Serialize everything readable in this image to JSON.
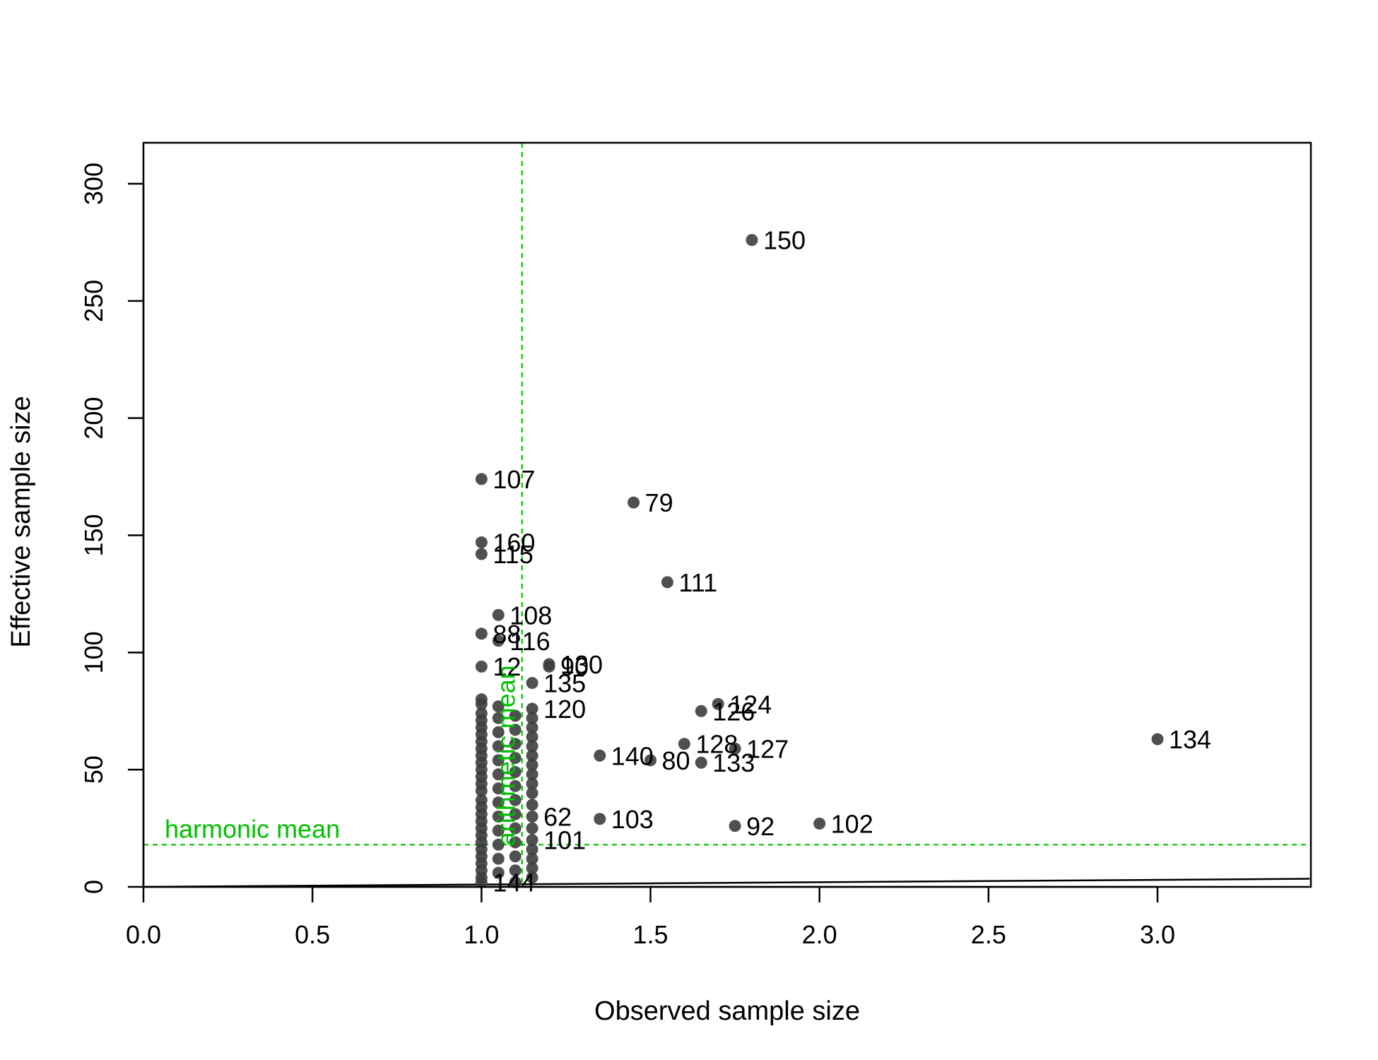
{
  "chart_data": {
    "type": "scatter",
    "title": "",
    "xlabel": "Observed sample size",
    "ylabel": "Effective sample size",
    "xlim": [
      0,
      3.45
    ],
    "ylim": [
      0,
      318
    ],
    "x_ticks": [
      "0.0",
      "0.5",
      "1.0",
      "1.5",
      "2.0",
      "2.5",
      "3.0"
    ],
    "x_tick_values": [
      0,
      0.5,
      1.0,
      1.5,
      2.0,
      2.5,
      3.0
    ],
    "y_ticks": [
      "0",
      "50",
      "100",
      "150",
      "200",
      "250",
      "300"
    ],
    "y_tick_values": [
      0,
      50,
      100,
      150,
      200,
      250,
      300
    ],
    "grid": false,
    "point_color": "#3d3d3d",
    "reference_color": "#00c000",
    "reference_lines": [
      {
        "label": "harmonic mean",
        "orientation": "horizontal",
        "value": 18
      },
      {
        "label": "arithmetic mean",
        "orientation": "vertical",
        "value": 1.12
      }
    ],
    "identity_line": {
      "from": [
        0,
        0
      ],
      "to": [
        3.45,
        3.45
      ]
    },
    "labeled_points": [
      {
        "label": "150",
        "x": 1.8,
        "y": 276
      },
      {
        "label": "107",
        "x": 1.0,
        "y": 174
      },
      {
        "label": "79",
        "x": 1.45,
        "y": 164
      },
      {
        "label": "160",
        "x": 1.0,
        "y": 147
      },
      {
        "label": "115",
        "x": 1.0,
        "y": 142
      },
      {
        "label": "111",
        "x": 1.55,
        "y": 130
      },
      {
        "label": "108",
        "x": 1.05,
        "y": 116
      },
      {
        "label": "88",
        "x": 1.0,
        "y": 108
      },
      {
        "label": "116",
        "x": 1.05,
        "y": 105
      },
      {
        "label": "12",
        "x": 1.0,
        "y": 94
      },
      {
        "label": "130",
        "x": 1.2,
        "y": 95
      },
      {
        "label": "90",
        "x": 1.2,
        "y": 94
      },
      {
        "label": "135",
        "x": 1.15,
        "y": 87
      },
      {
        "label": "120",
        "x": 1.15,
        "y": 76
      },
      {
        "label": "124",
        "x": 1.7,
        "y": 78
      },
      {
        "label": "126",
        "x": 1.65,
        "y": 75
      },
      {
        "label": "128",
        "x": 1.6,
        "y": 61
      },
      {
        "label": "127",
        "x": 1.75,
        "y": 59
      },
      {
        "label": "140",
        "x": 1.35,
        "y": 56
      },
      {
        "label": "80",
        "x": 1.5,
        "y": 54
      },
      {
        "label": "133",
        "x": 1.65,
        "y": 53
      },
      {
        "label": "134",
        "x": 3.0,
        "y": 63
      },
      {
        "label": "62",
        "x": 1.15,
        "y": 30
      },
      {
        "label": "103",
        "x": 1.35,
        "y": 29
      },
      {
        "label": "92",
        "x": 1.75,
        "y": 26
      },
      {
        "label": "102",
        "x": 2.0,
        "y": 27
      },
      {
        "label": "101",
        "x": 1.15,
        "y": 20
      },
      {
        "label": "144",
        "x": 1.0,
        "y": 2
      }
    ],
    "cluster_points": [
      {
        "x": 1.0,
        "y": 80
      },
      {
        "x": 1.0,
        "y": 78
      },
      {
        "x": 1.0,
        "y": 74
      },
      {
        "x": 1.0,
        "y": 71
      },
      {
        "x": 1.0,
        "y": 68
      },
      {
        "x": 1.0,
        "y": 65
      },
      {
        "x": 1.0,
        "y": 62
      },
      {
        "x": 1.0,
        "y": 59
      },
      {
        "x": 1.0,
        "y": 56
      },
      {
        "x": 1.0,
        "y": 53
      },
      {
        "x": 1.0,
        "y": 50
      },
      {
        "x": 1.0,
        "y": 47
      },
      {
        "x": 1.0,
        "y": 44
      },
      {
        "x": 1.0,
        "y": 41
      },
      {
        "x": 1.0,
        "y": 37
      },
      {
        "x": 1.0,
        "y": 34
      },
      {
        "x": 1.0,
        "y": 31
      },
      {
        "x": 1.0,
        "y": 28
      },
      {
        "x": 1.0,
        "y": 25
      },
      {
        "x": 1.0,
        "y": 22
      },
      {
        "x": 1.0,
        "y": 19
      },
      {
        "x": 1.0,
        "y": 16
      },
      {
        "x": 1.0,
        "y": 13
      },
      {
        "x": 1.0,
        "y": 10
      },
      {
        "x": 1.0,
        "y": 7
      },
      {
        "x": 1.0,
        "y": 4
      },
      {
        "x": 1.05,
        "y": 77
      },
      {
        "x": 1.05,
        "y": 72
      },
      {
        "x": 1.05,
        "y": 66
      },
      {
        "x": 1.05,
        "y": 60
      },
      {
        "x": 1.05,
        "y": 54
      },
      {
        "x": 1.05,
        "y": 48
      },
      {
        "x": 1.05,
        "y": 42
      },
      {
        "x": 1.05,
        "y": 36
      },
      {
        "x": 1.05,
        "y": 30
      },
      {
        "x": 1.05,
        "y": 24
      },
      {
        "x": 1.05,
        "y": 18
      },
      {
        "x": 1.05,
        "y": 12
      },
      {
        "x": 1.05,
        "y": 6
      },
      {
        "x": 1.1,
        "y": 73
      },
      {
        "x": 1.1,
        "y": 67
      },
      {
        "x": 1.1,
        "y": 61
      },
      {
        "x": 1.1,
        "y": 55
      },
      {
        "x": 1.1,
        "y": 49
      },
      {
        "x": 1.1,
        "y": 43
      },
      {
        "x": 1.1,
        "y": 37
      },
      {
        "x": 1.1,
        "y": 31
      },
      {
        "x": 1.1,
        "y": 25
      },
      {
        "x": 1.1,
        "y": 19
      },
      {
        "x": 1.1,
        "y": 13
      },
      {
        "x": 1.1,
        "y": 7
      },
      {
        "x": 1.1,
        "y": 2
      },
      {
        "x": 1.15,
        "y": 72
      },
      {
        "x": 1.15,
        "y": 68
      },
      {
        "x": 1.15,
        "y": 64
      },
      {
        "x": 1.15,
        "y": 60
      },
      {
        "x": 1.15,
        "y": 56
      },
      {
        "x": 1.15,
        "y": 52
      },
      {
        "x": 1.15,
        "y": 48
      },
      {
        "x": 1.15,
        "y": 44
      },
      {
        "x": 1.15,
        "y": 40
      },
      {
        "x": 1.15,
        "y": 35
      },
      {
        "x": 1.15,
        "y": 25
      },
      {
        "x": 1.15,
        "y": 16
      },
      {
        "x": 1.15,
        "y": 12
      },
      {
        "x": 1.15,
        "y": 8
      },
      {
        "x": 1.15,
        "y": 4
      }
    ]
  }
}
